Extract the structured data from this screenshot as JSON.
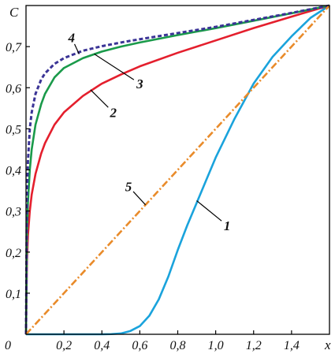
{
  "chart_data": {
    "type": "line",
    "xlabel": "x",
    "ylabel": "C",
    "origin_label": "0",
    "xlim": [
      0,
      1.6
    ],
    "ylim": [
      0,
      0.8
    ],
    "grid": false,
    "x_ticks": [
      {
        "value": 0.2,
        "label": "0,2"
      },
      {
        "value": 0.4,
        "label": "0,4"
      },
      {
        "value": 0.6,
        "label": "0,6"
      },
      {
        "value": 0.8,
        "label": "0,8"
      },
      {
        "value": 1.0,
        "label": "1,0"
      },
      {
        "value": 1.2,
        "label": "1,2"
      },
      {
        "value": 1.4,
        "label": "1,4"
      }
    ],
    "y_ticks": [
      {
        "value": 0.1,
        "label": "0,1"
      },
      {
        "value": 0.2,
        "label": "0,2"
      },
      {
        "value": 0.3,
        "label": "0,3"
      },
      {
        "value": 0.4,
        "label": "0,4"
      },
      {
        "value": 0.5,
        "label": "0,5"
      },
      {
        "value": 0.6,
        "label": "0,6"
      },
      {
        "value": 0.7,
        "label": "0,7"
      }
    ],
    "series": [
      {
        "name": "1",
        "color": "#1aa3dc",
        "style": "solid",
        "x": [
          0,
          0.2,
          0.4,
          0.45,
          0.5,
          0.55,
          0.6,
          0.65,
          0.7,
          0.75,
          0.8,
          0.85,
          0.9,
          0.95,
          1.0,
          1.1,
          1.2,
          1.3,
          1.4,
          1.5,
          1.6
        ],
        "y": [
          0,
          0,
          0,
          0.0005,
          0.002,
          0.008,
          0.02,
          0.045,
          0.085,
          0.14,
          0.205,
          0.265,
          0.32,
          0.375,
          0.43,
          0.525,
          0.61,
          0.675,
          0.725,
          0.77,
          0.8
        ]
      },
      {
        "name": "2",
        "color": "#e41f2d",
        "style": "solid",
        "x": [
          0,
          0.005,
          0.01,
          0.02,
          0.03,
          0.05,
          0.08,
          0.1,
          0.15,
          0.2,
          0.3,
          0.4,
          0.5,
          0.6,
          0.8,
          1.0,
          1.2,
          1.4,
          1.6
        ],
        "y": [
          0,
          0.18,
          0.24,
          0.3,
          0.34,
          0.39,
          0.44,
          0.465,
          0.51,
          0.54,
          0.58,
          0.61,
          0.632,
          0.652,
          0.685,
          0.715,
          0.745,
          0.773,
          0.8
        ]
      },
      {
        "name": "3",
        "color": "#1a9a4a",
        "style": "solid",
        "x": [
          0,
          0.005,
          0.01,
          0.02,
          0.03,
          0.05,
          0.08,
          0.1,
          0.15,
          0.2,
          0.3,
          0.4,
          0.5,
          0.6,
          0.8,
          1.0,
          1.2,
          1.4,
          1.6
        ],
        "y": [
          0,
          0.25,
          0.32,
          0.4,
          0.45,
          0.51,
          0.56,
          0.585,
          0.625,
          0.648,
          0.672,
          0.688,
          0.7,
          0.71,
          0.728,
          0.745,
          0.763,
          0.781,
          0.8
        ]
      },
      {
        "name": "4",
        "color": "#3b3496",
        "style": "dashed",
        "x": [
          0,
          0.005,
          0.01,
          0.02,
          0.03,
          0.05,
          0.08,
          0.1,
          0.15,
          0.2,
          0.3,
          0.4,
          0.5,
          0.6,
          0.8,
          1.0,
          1.2,
          1.4,
          1.6
        ],
        "y": [
          0,
          0.33,
          0.42,
          0.5,
          0.54,
          0.585,
          0.62,
          0.635,
          0.658,
          0.672,
          0.69,
          0.701,
          0.71,
          0.718,
          0.733,
          0.748,
          0.765,
          0.782,
          0.8
        ]
      },
      {
        "name": "5",
        "color": "#e98b2a",
        "style": "dashdot",
        "x": [
          0,
          1.6
        ],
        "y": [
          0,
          0.8
        ]
      }
    ],
    "curve_labels": [
      {
        "series": "1",
        "text": "1",
        "anchor": [
          0.9,
          0.325
        ],
        "label_at": [
          1.06,
          0.265
        ]
      },
      {
        "series": "2",
        "text": "2",
        "anchor": [
          0.34,
          0.595
        ],
        "label_at": [
          0.46,
          0.54
        ]
      },
      {
        "series": "3",
        "text": "3",
        "anchor": [
          0.36,
          0.682
        ],
        "label_at": [
          0.6,
          0.61
        ]
      },
      {
        "series": "4",
        "text": "4",
        "anchor": [
          0.28,
          0.682
        ],
        "label_at": [
          0.24,
          0.722
        ]
      },
      {
        "series": "5",
        "text": "5",
        "anchor": [
          0.63,
          0.315
        ],
        "label_at": [
          0.54,
          0.36
        ]
      }
    ]
  }
}
